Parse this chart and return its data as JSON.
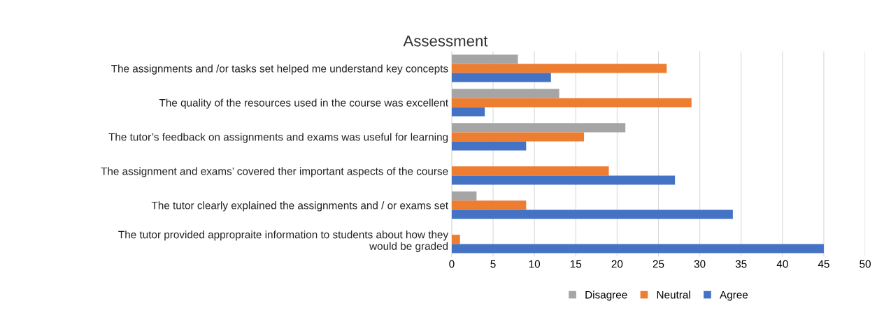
{
  "chart_data": {
    "type": "bar",
    "orientation": "horizontal",
    "title": "Assessment",
    "categories": [
      "The assignments and /or tasks set helped me understand key concepts",
      "The quality of the resources used in the course was excellent",
      "The tutor’s feedback on assignments and exams was useful for learning",
      "The assignment and exams’ covered ther important aspects of the course",
      "The tutor clearly explained the assignments and / or exams set",
      "The tutor provided appropraite information to students about how they\nwould be graded"
    ],
    "series": [
      {
        "name": "Disagree",
        "color": "#a5a5a5",
        "values": [
          8,
          13,
          21,
          0,
          3,
          0
        ]
      },
      {
        "name": "Neutral",
        "color": "#ed7d31",
        "values": [
          26,
          29,
          16,
          19,
          9,
          1
        ]
      },
      {
        "name": "Agree",
        "color": "#4472c4",
        "values": [
          12,
          4,
          9,
          27,
          34,
          45
        ]
      }
    ],
    "xlim": [
      0,
      50
    ],
    "xticks": [
      0,
      5,
      10,
      15,
      20,
      25,
      30,
      35,
      40,
      45,
      50
    ],
    "grid": "x",
    "legend": "bottom"
  }
}
